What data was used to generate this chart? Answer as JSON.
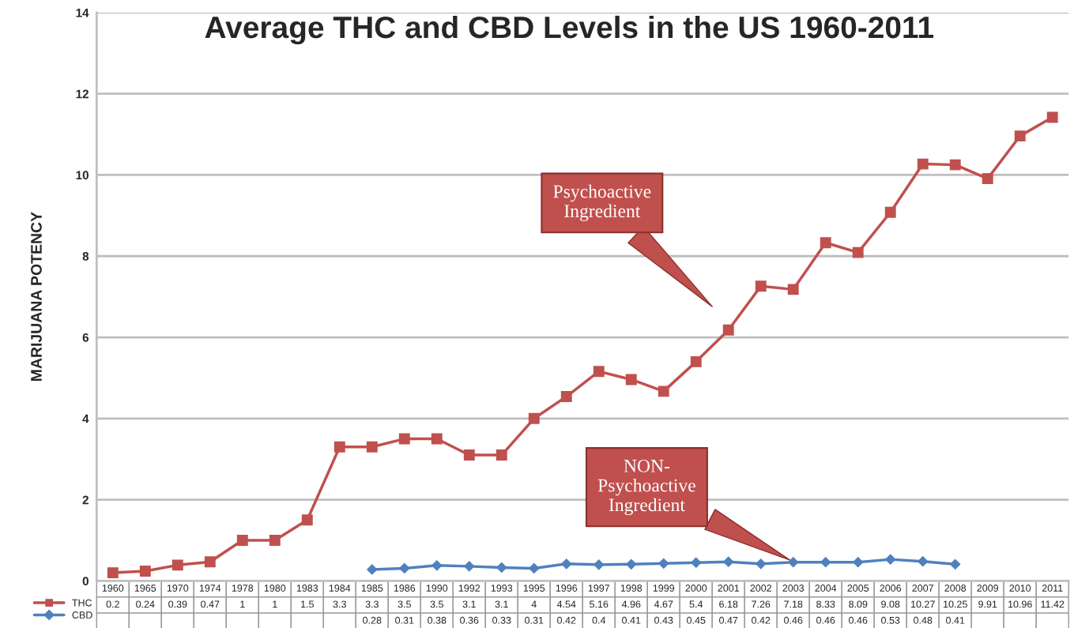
{
  "chart_data": {
    "type": "line",
    "title": "Average THC and CBD Levels in the US 1960-2011",
    "ylabel": "MARIJUANA POTENCY",
    "categories": [
      "1960",
      "1965",
      "1970",
      "1974",
      "1978",
      "1980",
      "1983",
      "1984",
      "1985",
      "1986",
      "1990",
      "1992",
      "1993",
      "1995",
      "1996",
      "1997",
      "1998",
      "1999",
      "2000",
      "2001",
      "2002",
      "2003",
      "2004",
      "2005",
      "2006",
      "2007",
      "2008",
      "2009",
      "2010",
      "2011"
    ],
    "series": [
      {
        "name": "THC",
        "color": "#c0504d",
        "marker": "square",
        "values": [
          0.2,
          0.24,
          0.39,
          0.47,
          1,
          1,
          1.5,
          3.3,
          3.3,
          3.5,
          3.5,
          3.1,
          3.1,
          4,
          4.54,
          5.16,
          4.96,
          4.67,
          5.4,
          6.18,
          7.26,
          7.18,
          8.33,
          8.09,
          9.08,
          10.27,
          10.25,
          9.91,
          10.96,
          11.42
        ]
      },
      {
        "name": "CBD",
        "color": "#4f81bd",
        "marker": "diamond",
        "values": [
          null,
          null,
          null,
          null,
          null,
          null,
          null,
          null,
          0.28,
          0.31,
          0.38,
          0.36,
          0.33,
          0.31,
          0.42,
          0.4,
          0.41,
          0.43,
          0.45,
          0.47,
          0.42,
          0.46,
          0.46,
          0.46,
          0.53,
          0.48,
          0.41,
          null,
          null,
          null
        ]
      }
    ],
    "ylim": [
      0,
      14
    ],
    "yticks": [
      0,
      2,
      4,
      6,
      8,
      10,
      12,
      14
    ],
    "grid": "y",
    "legend": "bottom left",
    "data_labels": true,
    "line_style": "solid",
    "annotations": [
      "Psychoactive\nIngredient",
      "NON-\nPsychoactive\nIngredient"
    ]
  }
}
